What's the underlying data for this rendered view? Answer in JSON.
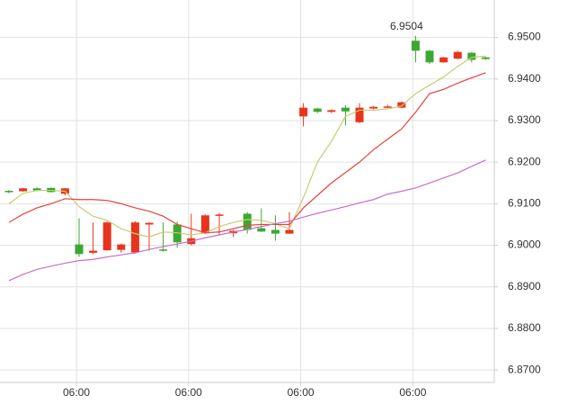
{
  "chart_data": {
    "type": "candlestick",
    "categories": [
      null,
      null,
      null,
      null,
      null,
      "06:00",
      null,
      null,
      null,
      null,
      null,
      null,
      null,
      "06:00",
      null,
      null,
      null,
      null,
      null,
      null,
      null,
      "06:00",
      null,
      null,
      null,
      null,
      null,
      null,
      null,
      "06:00",
      null,
      null,
      null,
      null,
      null
    ],
    "open": [
      6.9131,
      6.913,
      6.9137,
      6.9138,
      6.9124,
      6.9002,
      6.8982,
      6.8988,
      6.8989,
      6.8983,
      6.905,
      6.899,
      6.905,
      6.9003,
      6.9029,
      6.9072,
      6.9029,
      6.9076,
      6.9041,
      6.9037,
      6.9028,
      6.931,
      6.9329,
      6.9321,
      6.9331,
      6.9296,
      6.9329,
      6.9333,
      6.9331,
      6.9492,
      6.9468,
      6.944,
      6.9449,
      6.9463,
      6.9452
    ],
    "high": [
      6.9133,
      6.9138,
      6.9139,
      6.9139,
      6.9138,
      6.9065,
      6.9055,
      6.9057,
      6.9004,
      6.9058,
      6.9055,
      6.9055,
      6.9057,
      6.9076,
      6.9074,
      6.9078,
      6.9037,
      6.908,
      6.9089,
      6.9072,
      6.908,
      6.9342,
      6.9331,
      6.9327,
      6.9337,
      6.9342,
      6.9335,
      6.9338,
      6.9346,
      6.9504,
      6.947,
      6.9453,
      6.9468,
      6.9465,
      6.9454
    ],
    "low": [
      6.9125,
      6.9129,
      6.913,
      6.9127,
      6.912,
      6.8972,
      6.8979,
      6.8987,
      6.8982,
      6.898,
      6.8987,
      6.8985,
      6.8994,
      6.9,
      6.9027,
      6.9025,
      6.902,
      6.9028,
      6.9032,
      6.9011,
      6.9028,
      6.9286,
      6.9318,
      6.9318,
      6.9288,
      6.9294,
      6.9327,
      6.933,
      6.933,
      6.944,
      6.9436,
      6.9439,
      6.9447,
      6.944,
      6.9446
    ],
    "close": [
      6.913,
      6.9137,
      6.9132,
      6.9128,
      6.9137,
      6.8979,
      6.8987,
      6.9055,
      6.9002,
      6.9055,
      6.9054,
      6.8987,
      6.9007,
      6.9017,
      6.9072,
      6.9074,
      6.9035,
      6.9037,
      6.9033,
      6.9028,
      6.9037,
      6.9331,
      6.9321,
      6.9325,
      6.9322,
      6.9331,
      6.9333,
      6.9334,
      6.9344,
      6.9468,
      6.944,
      6.9452,
      6.9465,
      6.9446,
      6.9448
    ],
    "up_color": "#e8341c",
    "down_color": "#3aa831",
    "series": [
      {
        "color": "#c8cc72",
        "values": [
          6.91,
          6.9125,
          6.9132,
          6.9132,
          6.913,
          6.9093,
          6.907,
          6.906,
          6.904,
          6.9028,
          6.902,
          6.9032,
          6.903,
          6.9025,
          6.903,
          6.9045,
          6.9055,
          6.9062,
          6.906,
          6.9052,
          6.904,
          6.9115,
          6.92,
          6.925,
          6.931,
          6.9325,
          6.9325,
          6.9328,
          6.9335,
          6.9365,
          6.9385,
          6.9405,
          6.943,
          6.9452,
          6.9455
        ]
      },
      {
        "color": "#e8413a",
        "values": [
          6.9055,
          6.9075,
          6.909,
          6.91,
          6.9112,
          6.911,
          6.911,
          6.9108,
          6.91,
          6.909,
          6.9082,
          6.907,
          6.905,
          6.904,
          6.903,
          6.9032,
          6.904,
          6.9048,
          6.905,
          6.905,
          6.905,
          6.909,
          6.912,
          6.915,
          6.9175,
          6.92,
          6.923,
          6.9255,
          6.928,
          6.932,
          6.9365,
          6.9375,
          6.939,
          6.9403,
          6.9415
        ]
      },
      {
        "color": "#c96ec9",
        "values": [
          6.8915,
          6.893,
          6.8942,
          6.895,
          6.8957,
          6.8963,
          6.8966,
          6.8972,
          6.8977,
          6.8982,
          6.899,
          6.8997,
          6.9003,
          6.901,
          6.9018,
          6.9025,
          6.9032,
          6.9038,
          6.9045,
          6.9052,
          6.9058,
          6.9068,
          6.9077,
          6.9085,
          6.9093,
          6.9102,
          6.911,
          6.9123,
          6.913,
          6.9138,
          6.915,
          6.9162,
          6.9174,
          6.919,
          6.9205
        ]
      }
    ],
    "annotation": "6.9504",
    "ylim": [
      6.867,
      6.959
    ],
    "yticks": [
      {
        "value": 6.87,
        "label": "6.8700"
      },
      {
        "value": 6.88,
        "label": "6.8800"
      },
      {
        "value": 6.89,
        "label": "6.8900"
      },
      {
        "value": 6.9,
        "label": "6.9000"
      },
      {
        "value": 6.91,
        "label": "6.9100"
      },
      {
        "value": 6.92,
        "label": "6.9200"
      },
      {
        "value": 6.93,
        "label": "6.9300"
      },
      {
        "value": 6.94,
        "label": "6.9400"
      },
      {
        "value": 6.95,
        "label": "6.9500"
      }
    ],
    "grid": true
  }
}
